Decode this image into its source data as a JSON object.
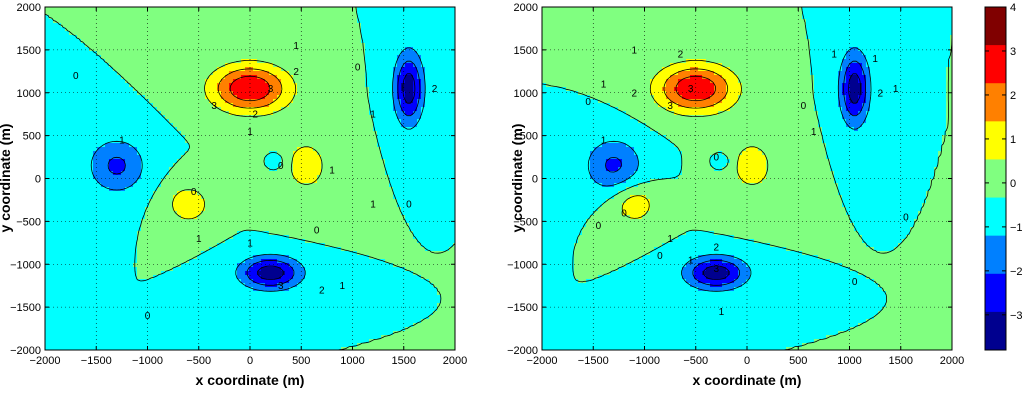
{
  "chart_data": [
    {
      "type": "contour",
      "xlabel": "x coordinate (m)",
      "ylabel": "y coordinate (m)",
      "xlim": [
        -2000,
        2000
      ],
      "ylim": [
        -2000,
        2000
      ],
      "xticks": [
        "−2000",
        "−1500",
        "−1000",
        "−500",
        "0",
        "500",
        "1000",
        "1500",
        "2000"
      ],
      "yticks": [
        "−2000",
        "−1500",
        "−1000",
        "−500",
        "0",
        "500",
        "1000",
        "1500",
        "2000"
      ],
      "grid": true,
      "contour_levels": [
        -3,
        -2,
        -1,
        0,
        1,
        2,
        3
      ],
      "features": [
        {
          "kind": "max",
          "x": 0,
          "y": 1050,
          "peak": 3.9,
          "sx": 380,
          "sy": 280
        },
        {
          "kind": "min",
          "x": 1550,
          "y": 1050,
          "peak": -3.6,
          "sx": 140,
          "sy": 420
        },
        {
          "kind": "min",
          "x": 200,
          "y": -1100,
          "peak": -3.6,
          "sx": 300,
          "sy": 190
        },
        {
          "kind": "min",
          "x": -1300,
          "y": 150,
          "peak": -2.2,
          "sx": 280,
          "sy": 320
        },
        {
          "kind": "max",
          "x": -600,
          "y": -300,
          "peak": 1.6,
          "sx": 230,
          "sy": 250
        },
        {
          "kind": "max",
          "x": 550,
          "y": 150,
          "peak": 1.3,
          "sx": 300,
          "sy": 430
        },
        {
          "kind": "min",
          "x": 250,
          "y": 200,
          "peak": -1.4,
          "sx": 80,
          "sy": 90
        }
      ],
      "contour_labels": [
        {
          "text": "0",
          "x": -1700,
          "y": 1200
        },
        {
          "text": "1",
          "x": 450,
          "y": 1550
        },
        {
          "text": "2",
          "x": 450,
          "y": 1250
        },
        {
          "text": "3",
          "x": 200,
          "y": 1050
        },
        {
          "text": "3",
          "x": -350,
          "y": 850
        },
        {
          "text": "2",
          "x": 50,
          "y": 750
        },
        {
          "text": "1",
          "x": 0,
          "y": 550
        },
        {
          "text": "0",
          "x": 1050,
          "y": 1300
        },
        {
          "text": "1",
          "x": 1200,
          "y": 750
        },
        {
          "text": "2",
          "x": 1800,
          "y": 1050
        },
        {
          "text": "0",
          "x": 300,
          "y": 150
        },
        {
          "text": "1",
          "x": -1250,
          "y": 450
        },
        {
          "text": "0",
          "x": -550,
          "y": -150
        },
        {
          "text": "1",
          "x": 800,
          "y": 100
        },
        {
          "text": "0",
          "x": 1550,
          "y": -300
        },
        {
          "text": "1",
          "x": 1200,
          "y": -300
        },
        {
          "text": "1",
          "x": -500,
          "y": -700
        },
        {
          "text": "0",
          "x": 650,
          "y": -600
        },
        {
          "text": "1",
          "x": 0,
          "y": -750
        },
        {
          "text": "3",
          "x": 300,
          "y": -1250
        },
        {
          "text": "2",
          "x": 700,
          "y": -1300
        },
        {
          "text": "1",
          "x": 900,
          "y": -1250
        },
        {
          "text": "0",
          "x": -1000,
          "y": -1600
        }
      ]
    },
    {
      "type": "contour",
      "xlabel": "x coordinate (m)",
      "ylabel": "y coordinate (m)",
      "xlim": [
        -2000,
        2000
      ],
      "ylim": [
        -2000,
        2000
      ],
      "xticks": [
        "−2000",
        "−1500",
        "−1000",
        "−500",
        "0",
        "500",
        "1000",
        "1500",
        "2000"
      ],
      "yticks": [
        "−2000",
        "−1500",
        "−1000",
        "−500",
        "0",
        "500",
        "1000",
        "1500",
        "2000"
      ],
      "grid": true,
      "contour_levels": [
        -3,
        -2,
        -1,
        0,
        1,
        2,
        3
      ],
      "features": [
        {
          "kind": "max",
          "x": -500,
          "y": 1050,
          "peak": 3.9,
          "sx": 380,
          "sy": 280
        },
        {
          "kind": "min",
          "x": 1050,
          "y": 1050,
          "peak": -3.6,
          "sx": 140,
          "sy": 420
        },
        {
          "kind": "min",
          "x": -300,
          "y": -1100,
          "peak": -3.6,
          "sx": 300,
          "sy": 190
        },
        {
          "kind": "min",
          "x": -1300,
          "y": 150,
          "peak": -2.2,
          "sx": 280,
          "sy": 320
        },
        {
          "kind": "max",
          "x": -1100,
          "y": -300,
          "peak": 1.6,
          "sx": 230,
          "sy": 250
        },
        {
          "kind": "max",
          "x": 50,
          "y": 150,
          "peak": 1.3,
          "sx": 300,
          "sy": 430
        },
        {
          "kind": "min",
          "x": -250,
          "y": 200,
          "peak": -1.4,
          "sx": 80,
          "sy": 90
        }
      ],
      "contour_labels": [
        {
          "text": "0",
          "x": -1550,
          "y": 900
        },
        {
          "text": "1",
          "x": -1100,
          "y": 1500
        },
        {
          "text": "2",
          "x": -650,
          "y": 1450
        },
        {
          "text": "1",
          "x": -1400,
          "y": 1100
        },
        {
          "text": "2",
          "x": -1100,
          "y": 1000
        },
        {
          "text": "3",
          "x": -750,
          "y": 850
        },
        {
          "text": "3",
          "x": -550,
          "y": 1050
        },
        {
          "text": "0",
          "x": 550,
          "y": 850
        },
        {
          "text": "1",
          "x": 650,
          "y": 550
        },
        {
          "text": "2",
          "x": 1300,
          "y": 1000
        },
        {
          "text": "1",
          "x": 1250,
          "y": 1400
        },
        {
          "text": "1",
          "x": 850,
          "y": 1450
        },
        {
          "text": "1",
          "x": 1450,
          "y": 1050
        },
        {
          "text": "0",
          "x": -300,
          "y": 250
        },
        {
          "text": "1",
          "x": -1400,
          "y": 450
        },
        {
          "text": "0",
          "x": -1450,
          "y": -550
        },
        {
          "text": "1",
          "x": -750,
          "y": -700
        },
        {
          "text": "0",
          "x": -850,
          "y": -900
        },
        {
          "text": "1",
          "x": -550,
          "y": -950
        },
        {
          "text": "3",
          "x": -300,
          "y": -1050
        },
        {
          "text": "2",
          "x": -300,
          "y": -800
        },
        {
          "text": "0",
          "x": 1550,
          "y": -450
        },
        {
          "text": "0",
          "x": 1050,
          "y": -1200
        },
        {
          "text": "1",
          "x": -250,
          "y": -1550
        },
        {
          "text": "0",
          "x": -1200,
          "y": -400
        }
      ]
    }
  ],
  "colorbar": {
    "min": -3.8,
    "max": 4,
    "tick_values": [
      4,
      3,
      2,
      1,
      0,
      -1,
      -2,
      -3
    ],
    "tick_labels": [
      "4",
      "3",
      "2",
      "1",
      "0",
      "−1",
      "−2",
      "−3"
    ],
    "colors": [
      "#00008F",
      "#0000FF",
      "#0080FF",
      "#00FFFF",
      "#80FF80",
      "#FFFF00",
      "#FF8000",
      "#FF0000",
      "#800000"
    ]
  }
}
